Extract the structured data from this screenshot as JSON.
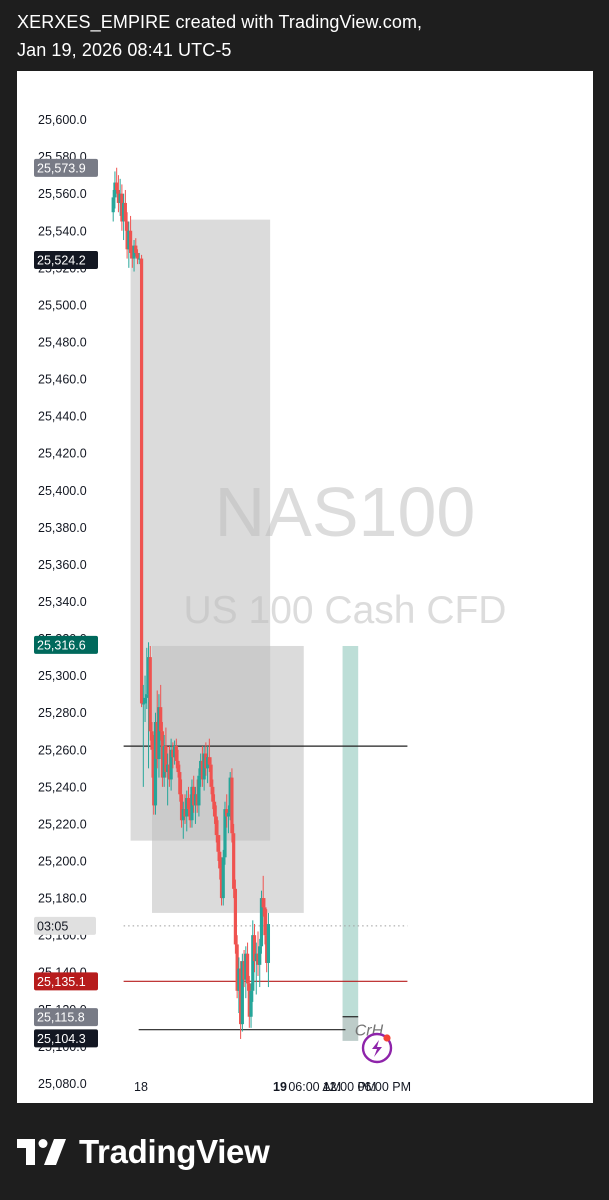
{
  "header": {
    "line1": "XERXES_EMPIRE created with TradingView.com,",
    "line2": "Jan 19, 2026 08:41 UTC-5"
  },
  "watermark": {
    "symbol": "NAS100",
    "description": "US 100 Cash CFD"
  },
  "footer": {
    "brand": "TradingView"
  },
  "colors": {
    "bull": "#26a69a",
    "bear": "#ef5350",
    "zone_gray": "#bdbdbd",
    "zone_green": "#b2d8d0",
    "red_line": "#b71c1c",
    "black_line": "#212121"
  },
  "chart_data": {
    "type": "candlestick",
    "y_axis": {
      "min": 25070,
      "max": 25610,
      "tick_labels": [
        "25,600.0",
        "25,580.0",
        "25,560.0",
        "25,540.0",
        "25,520.0",
        "25,500.0",
        "25,480.0",
        "25,460.0",
        "25,440.0",
        "25,420.0",
        "25,400.0",
        "25,380.0",
        "25,360.0",
        "25,340.0",
        "25,320.0",
        "25,300.0",
        "25,280.0",
        "25,260.0",
        "25,240.0",
        "25,220.0",
        "25,200.0",
        "25,180.0",
        "25,160.0",
        "25,140.0",
        "25,120.0",
        "25,100.0",
        "25,080.0"
      ]
    },
    "x_axis": {
      "min": 0,
      "max": 72,
      "unit": "hours from Jan 18 00:00 UTC-5",
      "ticks": [
        {
          "label": "18",
          "x": 0,
          "bold": false
        },
        {
          "label": "19",
          "x": 24,
          "bold": true
        },
        {
          "label": "06:00 AM",
          "x": 30,
          "bold": false
        },
        {
          "label": "12:00 PM",
          "x": 36,
          "bold": false
        },
        {
          "label": "06:00 PM",
          "x": 42,
          "bold": false
        }
      ]
    },
    "price_labels": [
      {
        "text": "25,573.9",
        "price": 25573.9,
        "style": "gray"
      },
      {
        "text": "25,524.2",
        "price": 25524.2,
        "style": "dark"
      },
      {
        "text": "25,316.6",
        "price": 25316.6,
        "style": "teal"
      },
      {
        "text": "03:05",
        "price": 25165,
        "style": "timer"
      },
      {
        "text": "25,135.1",
        "price": 25135.1,
        "style": "red"
      },
      {
        "text": "25,115.8",
        "price": 25115.8,
        "style": "gray"
      },
      {
        "text": "25,104.3",
        "price": 25104.3,
        "style": "dark"
      }
    ],
    "horizontal_lines": [
      {
        "price": 25262,
        "x1": -3,
        "x2": 46,
        "style": "black"
      },
      {
        "price": 25135.1,
        "x1": -3,
        "x2": 46,
        "style": "red"
      },
      {
        "price": 25165,
        "x1": -3,
        "x2": 46,
        "style": "dotted"
      },
      {
        "price": 25116,
        "x1": 34.8,
        "x2": 37.5,
        "style": "black"
      },
      {
        "price": 25109,
        "x1": -0.4,
        "x2": 35.3,
        "style": "black"
      }
    ],
    "line_labels": [
      {
        "text": "CrH",
        "price": 25109,
        "x": 36.9
      }
    ],
    "zones": [
      {
        "x1": -1.8,
        "x2": 22.3,
        "top": 25546,
        "bottom": 25211,
        "color": "gray"
      },
      {
        "x1": 1.9,
        "x2": 28.1,
        "top": 25316,
        "bottom": 25172,
        "color": "gray"
      },
      {
        "x1": 34.8,
        "x2": 37.5,
        "top": 25316,
        "bottom": 25103,
        "color": "green"
      },
      {
        "x1": 34.8,
        "x2": 37.5,
        "top": 25116,
        "bottom": 25103,
        "color": "gray"
      }
    ],
    "candles": [
      [
        -4.8,
        25550,
        25562,
        25545,
        25558
      ],
      [
        -4.5,
        25558,
        25572,
        25552,
        25566
      ],
      [
        -4.2,
        25566,
        25574,
        25560,
        25562
      ],
      [
        -3.9,
        25562,
        25570,
        25550,
        25555
      ],
      [
        -3.6,
        25555,
        25568,
        25548,
        25560
      ],
      [
        -3.3,
        25560,
        25565,
        25540,
        25545
      ],
      [
        -3.0,
        25545,
        25560,
        25535,
        25555
      ],
      [
        -2.7,
        25555,
        25562,
        25540,
        25545
      ],
      [
        -2.4,
        25545,
        25550,
        25525,
        25530
      ],
      [
        -2.1,
        25530,
        25545,
        25520,
        25540
      ],
      [
        -1.8,
        25540,
        25548,
        25525,
        25528
      ],
      [
        -1.5,
        25528,
        25532,
        25520,
        25525
      ],
      [
        -1.2,
        25525,
        25535,
        25518,
        25532
      ],
      [
        -0.9,
        25532,
        25536,
        25526,
        25528
      ],
      [
        -0.6,
        25528,
        25530,
        25522,
        25525
      ],
      [
        -0.3,
        25525,
        25528,
        25522,
        25525
      ],
      [
        0.1,
        25525,
        25527,
        25283,
        25285
      ],
      [
        0.4,
        25285,
        25295,
        25240,
        25285
      ],
      [
        0.7,
        25285,
        25300,
        25275,
        25288
      ],
      [
        1.0,
        25288,
        25315,
        25282,
        25290
      ],
      [
        1.3,
        25290,
        25318,
        25250,
        25310
      ],
      [
        1.6,
        25310,
        25316,
        25265,
        25270
      ],
      [
        1.9,
        25270,
        25275,
        25245,
        25260
      ],
      [
        2.2,
        25260,
        25268,
        25225,
        25230
      ],
      [
        2.5,
        25230,
        25280,
        25225,
        25275
      ],
      [
        2.8,
        25275,
        25292,
        25250,
        25255
      ],
      [
        3.1,
        25255,
        25290,
        25245,
        25283
      ],
      [
        3.4,
        25283,
        25295,
        25265,
        25270
      ],
      [
        3.7,
        25270,
        25275,
        25240,
        25245
      ],
      [
        4.0,
        25245,
        25268,
        25240,
        25262
      ],
      [
        4.3,
        25262,
        25272,
        25245,
        25248
      ],
      [
        4.6,
        25248,
        25258,
        25230,
        25252
      ],
      [
        4.9,
        25252,
        25262,
        25240,
        25244
      ],
      [
        5.2,
        25244,
        25266,
        25238,
        25260
      ],
      [
        5.5,
        25260,
        25264,
        25250,
        25256
      ],
      [
        5.8,
        25256,
        25265,
        25252,
        25262
      ],
      [
        6.1,
        25262,
        25266,
        25250,
        25254
      ],
      [
        6.4,
        25254,
        25260,
        25245,
        25248
      ],
      [
        6.7,
        25248,
        25252,
        25232,
        25236
      ],
      [
        7.0,
        25236,
        25244,
        25218,
        25222
      ],
      [
        7.3,
        25222,
        25232,
        25212,
        25228
      ],
      [
        7.6,
        25228,
        25236,
        25220,
        25224
      ],
      [
        7.9,
        25224,
        25238,
        25216,
        25234
      ],
      [
        8.2,
        25234,
        25240,
        25224,
        25228
      ],
      [
        8.5,
        25228,
        25236,
        25218,
        25222
      ],
      [
        8.8,
        25222,
        25244,
        25218,
        25240
      ],
      [
        9.1,
        25240,
        25246,
        25226,
        25230
      ],
      [
        9.4,
        25230,
        25240,
        25220,
        25236
      ],
      [
        9.7,
        25236,
        25244,
        25226,
        25230
      ],
      [
        10.0,
        25230,
        25250,
        25224,
        25246
      ],
      [
        10.3,
        25246,
        25258,
        25240,
        25254
      ],
      [
        10.6,
        25254,
        25262,
        25240,
        25244
      ],
      [
        10.9,
        25244,
        25262,
        25238,
        25258
      ],
      [
        11.2,
        25258,
        25264,
        25246,
        25250
      ],
      [
        11.5,
        25250,
        25262,
        25242,
        25256
      ],
      [
        11.8,
        25256,
        25266,
        25248,
        25252
      ],
      [
        12.1,
        25252,
        25256,
        25236,
        25240
      ],
      [
        12.4,
        25240,
        25244,
        25228,
        25232
      ],
      [
        12.7,
        25232,
        25236,
        25220,
        25224
      ],
      [
        13.0,
        25224,
        25230,
        25210,
        25214
      ],
      [
        13.3,
        25214,
        25222,
        25200,
        25205
      ],
      [
        13.6,
        25205,
        25214,
        25190,
        25196
      ],
      [
        13.9,
        25196,
        25202,
        25176,
        25180
      ],
      [
        14.2,
        25180,
        25206,
        25176,
        25202
      ],
      [
        14.5,
        25202,
        25232,
        25198,
        25228
      ],
      [
        14.8,
        25228,
        25236,
        25218,
        25224
      ],
      [
        15.1,
        25224,
        25230,
        25215,
        25226
      ],
      [
        15.4,
        25226,
        25248,
        25222,
        25245
      ],
      [
        15.7,
        25245,
        25250,
        25210,
        25215
      ],
      [
        16.0,
        25215,
        25220,
        25180,
        25185
      ],
      [
        16.3,
        25185,
        25190,
        25150,
        25155
      ],
      [
        16.6,
        25155,
        25160,
        25126,
        25130
      ],
      [
        16.9,
        25130,
        25148,
        25118,
        25142
      ],
      [
        17.2,
        25142,
        25146,
        25104,
        25112
      ],
      [
        17.5,
        25112,
        25150,
        25108,
        25146
      ],
      [
        17.8,
        25146,
        25152,
        25132,
        25136
      ],
      [
        18.1,
        25136,
        25154,
        25126,
        25150
      ],
      [
        18.4,
        25150,
        25156,
        25130,
        25134
      ],
      [
        18.7,
        25134,
        25138,
        25110,
        25116
      ],
      [
        19.0,
        25116,
        25134,
        25110,
        25130
      ],
      [
        19.3,
        25130,
        25168,
        25124,
        25160
      ],
      [
        19.6,
        25160,
        25166,
        25140,
        25146
      ],
      [
        19.9,
        25146,
        25156,
        25128,
        25150
      ],
      [
        20.2,
        25150,
        25162,
        25138,
        25144
      ],
      [
        20.5,
        25144,
        25158,
        25132,
        25154
      ],
      [
        20.8,
        25154,
        25184,
        25150,
        25180
      ],
      [
        21.1,
        25180,
        25192,
        25170,
        25175
      ],
      [
        21.4,
        25175,
        25180,
        25155,
        25160
      ],
      [
        21.7,
        25160,
        25174,
        25140,
        25145
      ],
      [
        22.0,
        25145,
        25172,
        25132,
        25166
      ]
    ]
  }
}
